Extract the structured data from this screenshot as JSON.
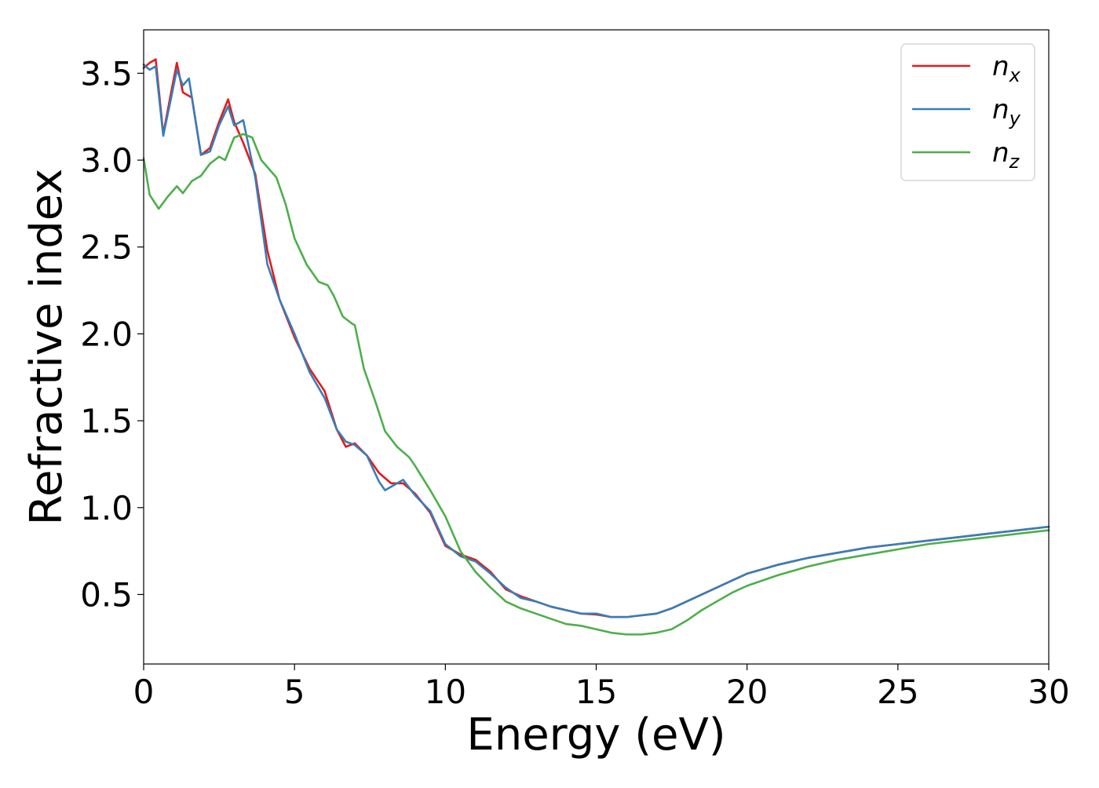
{
  "chart_data": {
    "type": "line",
    "title": "",
    "xlabel": "Energy (eV)",
    "ylabel": "Refractive index",
    "xlim": [
      0,
      30
    ],
    "ylim": [
      0.1,
      3.75
    ],
    "xticks": [
      0,
      5,
      10,
      15,
      20,
      25,
      30
    ],
    "xtick_labels": [
      "0",
      "5",
      "10",
      "15",
      "20",
      "25",
      "30"
    ],
    "yticks": [
      0.5,
      1.0,
      1.5,
      2.0,
      2.5,
      3.0,
      3.5
    ],
    "ytick_labels": [
      "0.5",
      "1.0",
      "1.5",
      "2.0",
      "2.5",
      "3.0",
      "3.5"
    ],
    "grid": false,
    "legend_position": "top-right",
    "series": [
      {
        "name": "n_x",
        "label_main": "n",
        "label_sub": "x",
        "color": "#e41a1c",
        "x": [
          0,
          0.2,
          0.4,
          0.65,
          0.9,
          1.1,
          1.3,
          1.6,
          1.9,
          2.2,
          2.5,
          2.8,
          3.0,
          3.3,
          3.7,
          4.1,
          4.5,
          5.0,
          5.5,
          6.0,
          6.4,
          6.7,
          7.0,
          7.4,
          7.8,
          8.2,
          8.6,
          9.0,
          9.5,
          10.0,
          10.5,
          11.0,
          11.5,
          12.0,
          12.5,
          13.0,
          13.5,
          14.0,
          14.5,
          15.0,
          15.5,
          16.0,
          16.5,
          17.0,
          17.5,
          18.0,
          18.5,
          19.0,
          19.5,
          20.0,
          21.0,
          22.0,
          23.0,
          24.0,
          25.0,
          26.0,
          27.0,
          28.0,
          29.0,
          30.0
        ],
        "values": [
          3.53,
          3.56,
          3.58,
          3.15,
          3.38,
          3.56,
          3.39,
          3.36,
          3.03,
          3.07,
          3.22,
          3.35,
          3.22,
          3.1,
          2.92,
          2.48,
          2.2,
          1.98,
          1.8,
          1.67,
          1.45,
          1.35,
          1.37,
          1.3,
          1.2,
          1.14,
          1.14,
          1.08,
          0.97,
          0.78,
          0.73,
          0.7,
          0.63,
          0.53,
          0.49,
          0.46,
          0.43,
          0.41,
          0.39,
          0.385,
          0.37,
          0.37,
          0.38,
          0.39,
          0.42,
          0.46,
          0.5,
          0.54,
          0.58,
          0.62,
          0.67,
          0.71,
          0.74,
          0.77,
          0.79,
          0.81,
          0.83,
          0.85,
          0.87,
          0.89
        ]
      },
      {
        "name": "n_y",
        "label_main": "n",
        "label_sub": "y",
        "color": "#377eb8",
        "x": [
          0,
          0.2,
          0.4,
          0.65,
          0.9,
          1.1,
          1.3,
          1.5,
          1.9,
          2.2,
          2.5,
          2.8,
          3.0,
          3.3,
          3.7,
          4.1,
          4.5,
          5.0,
          5.5,
          6.0,
          6.4,
          6.7,
          7.0,
          7.4,
          7.8,
          8.0,
          8.6,
          9.0,
          9.5,
          10.0,
          10.5,
          11.0,
          11.5,
          12.0,
          12.5,
          13.0,
          13.5,
          14.0,
          14.5,
          15.0,
          15.5,
          16.0,
          16.5,
          17.0,
          17.5,
          18.0,
          18.5,
          19.0,
          19.5,
          20.0,
          21.0,
          22.0,
          23.0,
          24.0,
          25.0,
          26.0,
          27.0,
          28.0,
          29.0,
          30.0
        ],
        "values": [
          3.55,
          3.52,
          3.54,
          3.14,
          3.35,
          3.52,
          3.43,
          3.47,
          3.03,
          3.05,
          3.2,
          3.31,
          3.2,
          3.23,
          2.9,
          2.4,
          2.2,
          2.0,
          1.78,
          1.63,
          1.45,
          1.38,
          1.36,
          1.3,
          1.15,
          1.1,
          1.16,
          1.07,
          0.98,
          0.79,
          0.72,
          0.69,
          0.62,
          0.54,
          0.48,
          0.46,
          0.43,
          0.41,
          0.39,
          0.39,
          0.37,
          0.37,
          0.38,
          0.39,
          0.42,
          0.46,
          0.5,
          0.54,
          0.58,
          0.62,
          0.67,
          0.71,
          0.74,
          0.77,
          0.79,
          0.81,
          0.83,
          0.85,
          0.87,
          0.89
        ]
      },
      {
        "name": "n_z",
        "label_main": "n",
        "label_sub": "z",
        "color": "#4daf4a",
        "x": [
          0,
          0.2,
          0.5,
          0.8,
          1.1,
          1.3,
          1.6,
          1.9,
          2.2,
          2.5,
          2.7,
          3.0,
          3.3,
          3.6,
          3.9,
          4.1,
          4.4,
          4.7,
          5.0,
          5.4,
          5.8,
          6.1,
          6.3,
          6.6,
          6.9,
          7.0,
          7.3,
          7.7,
          8.0,
          8.4,
          8.8,
          9.0,
          9.5,
          10.0,
          10.5,
          11.0,
          11.5,
          12.0,
          12.5,
          13.0,
          13.5,
          14.0,
          14.5,
          15.0,
          15.5,
          16.0,
          16.5,
          17.0,
          17.5,
          18.0,
          18.5,
          19.0,
          19.5,
          20.0,
          21.0,
          22.0,
          23.0,
          24.0,
          25.0,
          26.0,
          27.0,
          28.0,
          29.0,
          30.0
        ],
        "values": [
          3.01,
          2.8,
          2.72,
          2.79,
          2.85,
          2.81,
          2.88,
          2.91,
          2.98,
          3.02,
          3.0,
          3.13,
          3.15,
          3.13,
          3.0,
          2.96,
          2.9,
          2.75,
          2.55,
          2.4,
          2.3,
          2.28,
          2.22,
          2.1,
          2.06,
          2.05,
          1.8,
          1.6,
          1.44,
          1.35,
          1.29,
          1.24,
          1.1,
          0.95,
          0.75,
          0.63,
          0.54,
          0.46,
          0.42,
          0.39,
          0.36,
          0.33,
          0.32,
          0.3,
          0.28,
          0.27,
          0.27,
          0.28,
          0.3,
          0.35,
          0.41,
          0.46,
          0.51,
          0.55,
          0.61,
          0.66,
          0.7,
          0.73,
          0.76,
          0.79,
          0.81,
          0.83,
          0.85,
          0.87
        ]
      }
    ]
  }
}
